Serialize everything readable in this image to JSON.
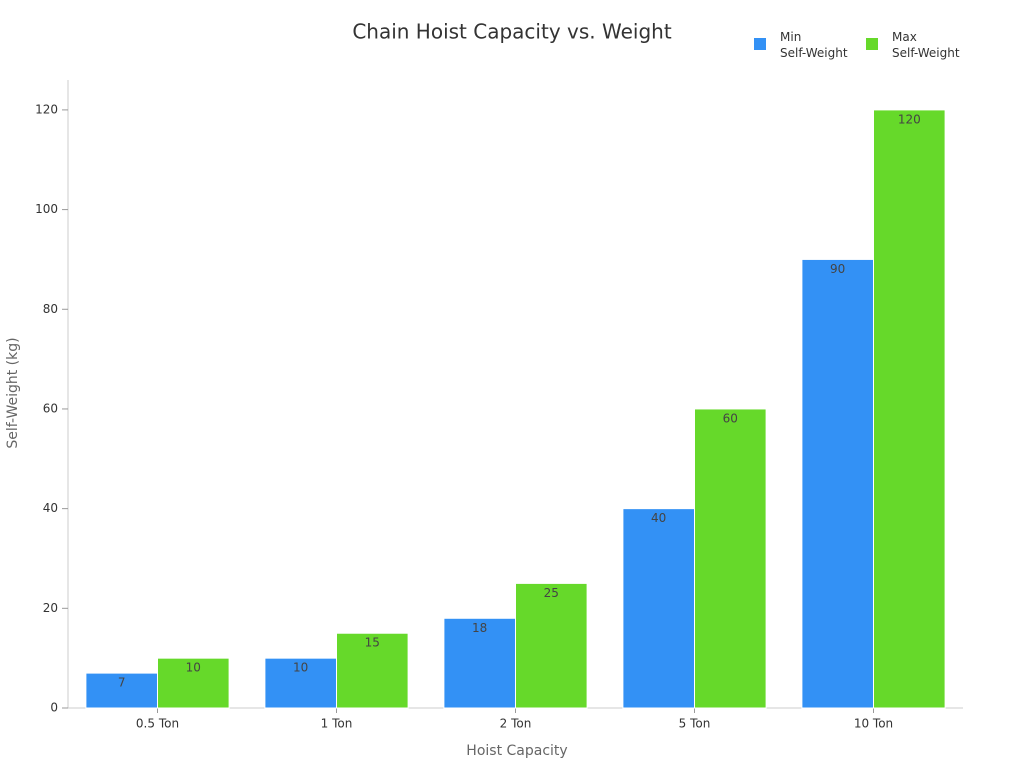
{
  "chart_data": {
    "type": "bar",
    "title": "Chain Hoist Capacity vs. Weight",
    "x_label": "Hoist Capacity",
    "y_label": "Self-Weight (kg)",
    "categories": [
      "0.5 Ton",
      "1 Ton",
      "2 Ton",
      "5 Ton",
      "10 Ton"
    ],
    "series": [
      {
        "name": "Min Self-Weight",
        "color": "#3391f5",
        "values": [
          7,
          10,
          18,
          40,
          90
        ]
      },
      {
        "name": "Max Self-Weight",
        "color": "#66d92a",
        "values": [
          10,
          15,
          25,
          60,
          120
        ]
      }
    ],
    "ylim": [
      0,
      126
    ],
    "yticks": [
      0,
      20,
      40,
      60,
      80,
      100,
      120
    ],
    "grid": false,
    "legend": "top-right"
  }
}
